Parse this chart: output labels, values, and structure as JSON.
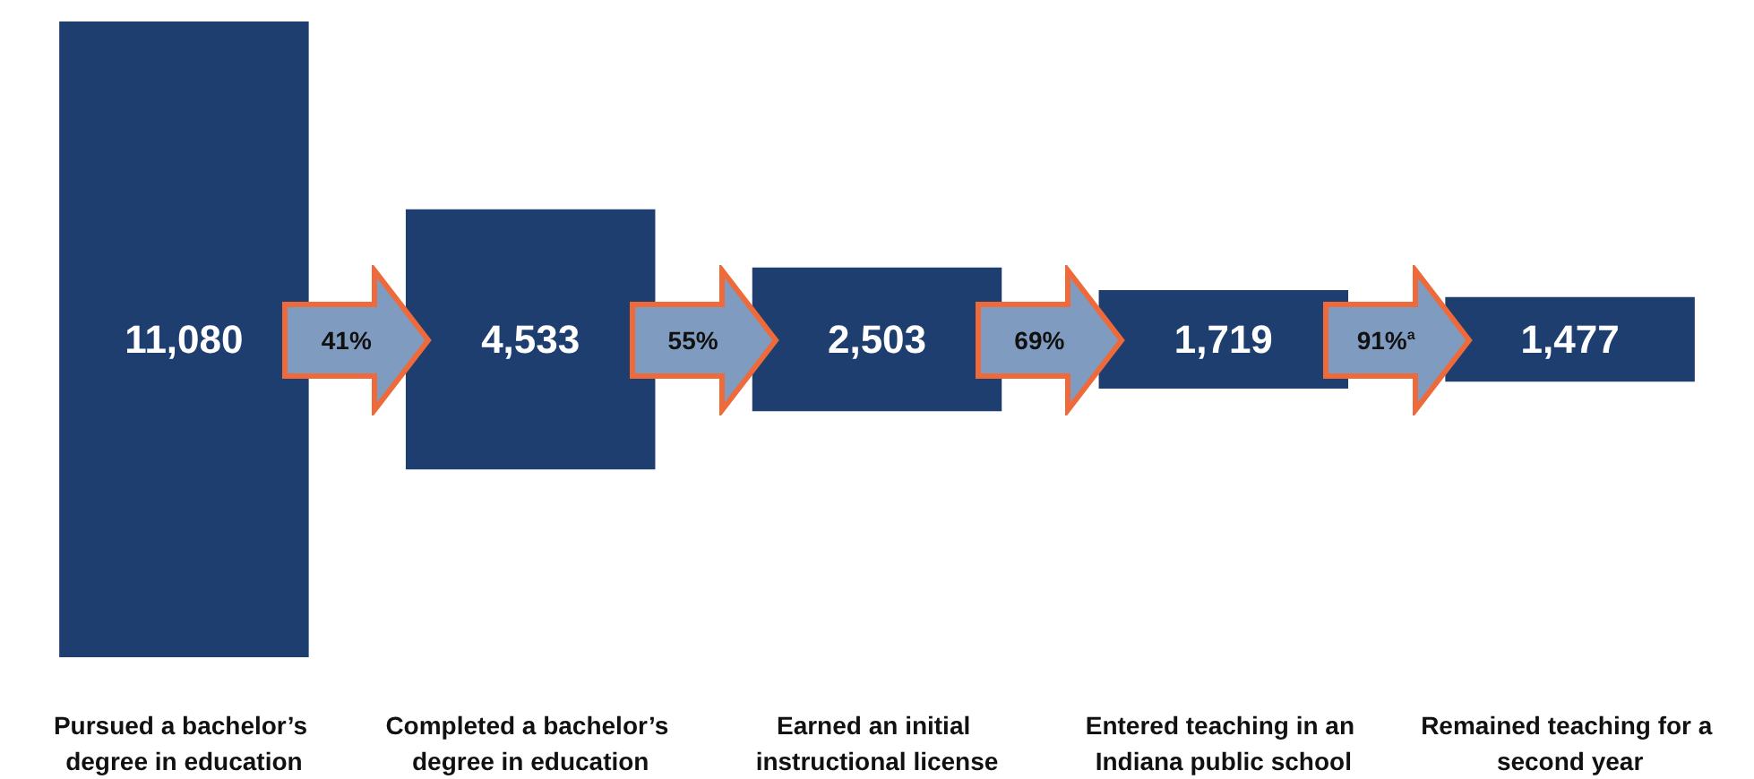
{
  "chart_data": {
    "type": "other",
    "categories": [
      "Pursued a bachelor’s degree in education",
      "Completed a bachelor’s degree in education",
      "Earned an initial instructional license",
      "Entered teaching in an Indiana public school",
      "Remained teaching for a second year"
    ],
    "values": [
      11080,
      4533,
      2503,
      1719,
      1477
    ],
    "color": "#1d3e6f",
    "value_labels": [
      "11,080",
      "4,533",
      "2,503",
      "1,719",
      "1,477"
    ],
    "annotations": [
      "41%",
      "55%",
      "69%",
      "91%$^{a}$"
    ]
  }
}
